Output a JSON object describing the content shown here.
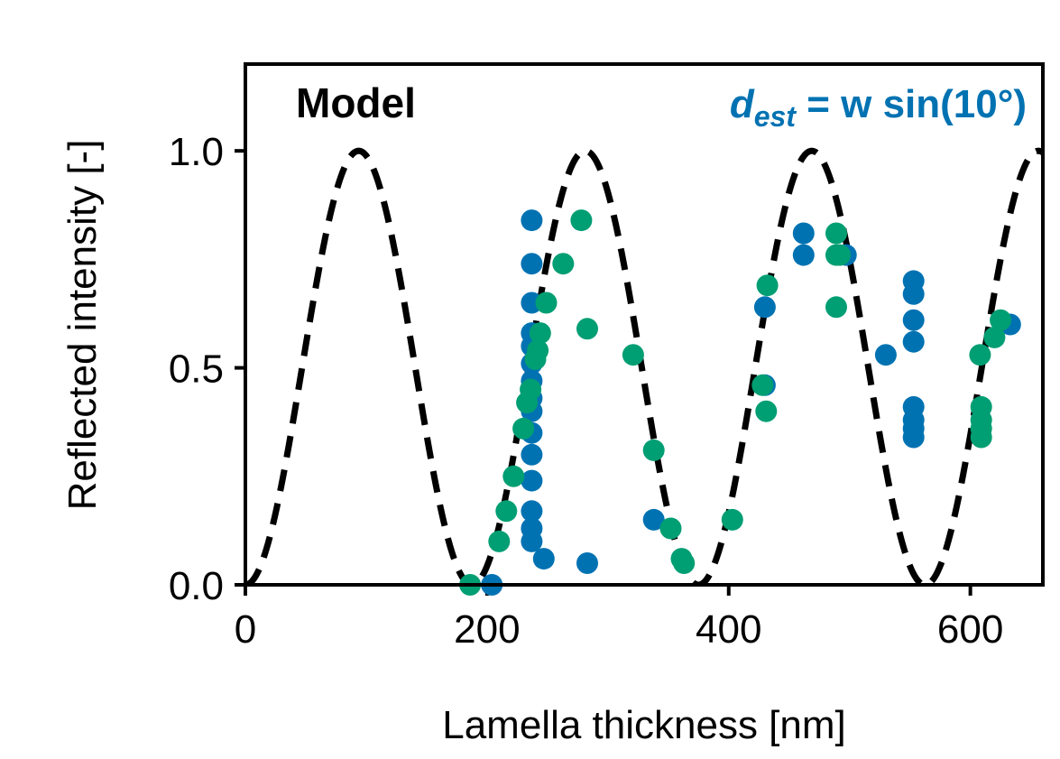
{
  "chart_data": {
    "type": "scatter",
    "xlabel": "Lamella thickness [nm]",
    "ylabel": "Reflected intensity [-]",
    "xlim": [
      0,
      660
    ],
    "ylim": [
      0,
      1.2
    ],
    "xticks": [
      0,
      200,
      400,
      600
    ],
    "xtick_labels": [
      "0",
      "200",
      "400",
      "600"
    ],
    "yticks": [
      0.0,
      0.5,
      1.0
    ],
    "ytick_labels": [
      "0.0",
      "0.5",
      "1.0"
    ],
    "grid": false,
    "annotations": {
      "model_label": "Model",
      "equation": {
        "main": "d",
        "subscript": "est",
        "rest": " = w sin(10°)",
        "color": "#0072B2"
      }
    },
    "model_curve": {
      "style": "dashed",
      "color": "#000000",
      "period_nm": 187.5,
      "phase_nm": 0,
      "formula": "sin^2(pi*x/period)"
    },
    "series": [
      {
        "color": "#0072B2",
        "points": [
          [
            237,
            0.84
          ],
          [
            237,
            0.74
          ],
          [
            237,
            0.65
          ],
          [
            237,
            0.58
          ],
          [
            237,
            0.55
          ],
          [
            237,
            0.51
          ],
          [
            237,
            0.47
          ],
          [
            237,
            0.43
          ],
          [
            237,
            0.4
          ],
          [
            237,
            0.35
          ],
          [
            237,
            0.3
          ],
          [
            237,
            0.24
          ],
          [
            237,
            0.17
          ],
          [
            237,
            0.13
          ],
          [
            237,
            0.1
          ],
          [
            247,
            0.06
          ],
          [
            283,
            0.05
          ],
          [
            204,
            0.0
          ],
          [
            338,
            0.15
          ],
          [
            430,
            0.64
          ],
          [
            430,
            0.46
          ],
          [
            462,
            0.81
          ],
          [
            462,
            0.76
          ],
          [
            497,
            0.76
          ],
          [
            530,
            0.53
          ],
          [
            553,
            0.7
          ],
          [
            553,
            0.67
          ],
          [
            553,
            0.61
          ],
          [
            553,
            0.56
          ],
          [
            553,
            0.41
          ],
          [
            553,
            0.38
          ],
          [
            553,
            0.36
          ],
          [
            553,
            0.34
          ],
          [
            633,
            0.6
          ]
        ]
      },
      {
        "color": "#009E73",
        "points": [
          [
            186,
            0.0
          ],
          [
            210,
            0.1
          ],
          [
            216,
            0.17
          ],
          [
            222,
            0.25
          ],
          [
            230,
            0.36
          ],
          [
            233,
            0.42
          ],
          [
            236,
            0.45
          ],
          [
            240,
            0.52
          ],
          [
            242,
            0.54
          ],
          [
            244,
            0.58
          ],
          [
            249,
            0.65
          ],
          [
            263,
            0.74
          ],
          [
            278,
            0.84
          ],
          [
            283,
            0.59
          ],
          [
            321,
            0.53
          ],
          [
            338,
            0.31
          ],
          [
            352,
            0.13
          ],
          [
            361,
            0.06
          ],
          [
            363,
            0.05
          ],
          [
            403,
            0.15
          ],
          [
            428,
            0.46
          ],
          [
            431,
            0.4
          ],
          [
            432,
            0.69
          ],
          [
            489,
            0.81
          ],
          [
            489,
            0.76
          ],
          [
            489,
            0.64
          ],
          [
            492,
            0.76
          ],
          [
            608,
            0.53
          ],
          [
            609,
            0.41
          ],
          [
            609,
            0.38
          ],
          [
            609,
            0.36
          ],
          [
            609,
            0.34
          ],
          [
            620,
            0.57
          ],
          [
            625,
            0.61
          ]
        ]
      }
    ]
  }
}
